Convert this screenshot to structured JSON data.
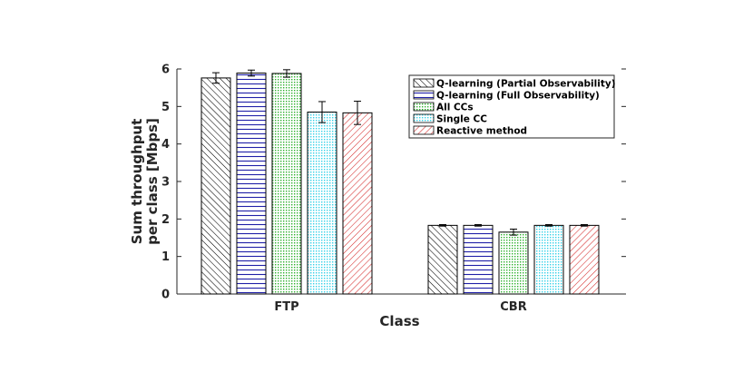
{
  "chart_data": {
    "type": "bar",
    "xlabel": "Class",
    "ylabel_lines": [
      "Sum throughput",
      "per class [Mbps]"
    ],
    "ylim": [
      0,
      6
    ],
    "yticks": [
      "0",
      "1",
      "2",
      "3",
      "4",
      "5",
      "6"
    ],
    "grid": false,
    "legend_position": "top-right",
    "categories": [
      "FTP",
      "CBR"
    ],
    "series": [
      {
        "name": "Q-learning (Partial Observability)",
        "values": [
          5.76,
          1.83
        ],
        "errors": [
          0.14,
          0.02
        ],
        "pattern": "hatch-back",
        "color": "#000000"
      },
      {
        "name": "Q-learning (Full Observability)",
        "values": [
          5.89,
          1.83
        ],
        "errors": [
          0.08,
          0.02
        ],
        "pattern": "hlines",
        "color": "#1f1fa8"
      },
      {
        "name": "All CCs",
        "values": [
          5.88,
          1.65
        ],
        "errors": [
          0.1,
          0.08
        ],
        "pattern": "dots",
        "color": "#2fb12f"
      },
      {
        "name": "Single CC",
        "values": [
          4.85,
          1.83
        ],
        "errors": [
          0.28,
          0.02
        ],
        "pattern": "dots",
        "color": "#35d2e8"
      },
      {
        "name": "Reactive method",
        "values": [
          4.83,
          1.83
        ],
        "errors": [
          0.31,
          0.02
        ],
        "pattern": "hatch-fwd",
        "color": "#d62b2b"
      }
    ]
  }
}
